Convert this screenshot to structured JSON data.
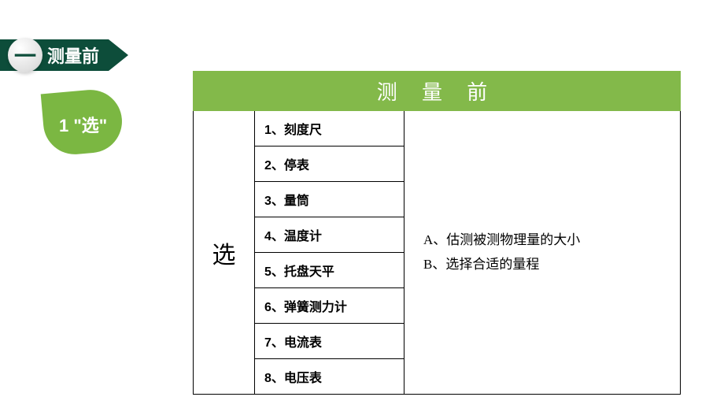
{
  "banner": {
    "icon_text": "一",
    "title": "测量前"
  },
  "leaf": {
    "label": "1 \"选\""
  },
  "table": {
    "header": "测 量 前",
    "left_label": "选",
    "items": [
      "1、刻度尺",
      "2、停表",
      "3、量筒",
      "4、温度计",
      "5、托盘天平",
      "6、弹簧测力计",
      "7、电流表",
      "8、电压表"
    ],
    "notes": [
      "A、估测被测物理量的大小",
      "B、选择合适的量程"
    ]
  },
  "colors": {
    "dark_green": "#0d4d3a",
    "leaf_green": "#7bb742",
    "header_green": "#83b94a",
    "white": "#ffffff",
    "black": "#000000"
  }
}
